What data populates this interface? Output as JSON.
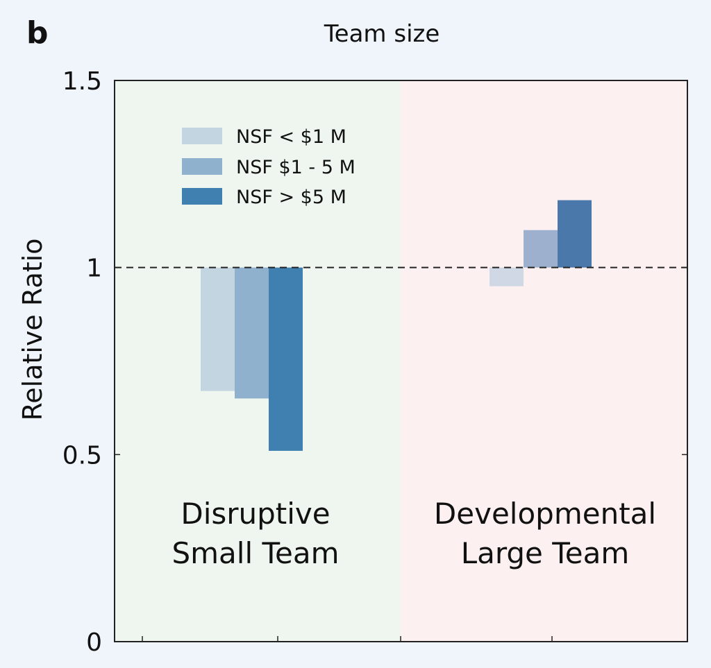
{
  "chart_data": {
    "type": "bar",
    "panel_label": "b",
    "title": "Team size",
    "xlabel": "",
    "ylabel": "Relative Ratio",
    "ylim": [
      0,
      1.5
    ],
    "yticks": [
      0,
      0.5,
      1,
      1.5
    ],
    "ytick_labels": [
      "0",
      "0.5",
      "1",
      "1.5"
    ],
    "baseline": 1,
    "grid": false,
    "legend_position": "top-left",
    "groups": [
      {
        "label_line1": "Disruptive",
        "label_line2": "Small Team",
        "background_color": "#eef6ef"
      },
      {
        "label_line1": "Developmental",
        "label_line2": "Large Team",
        "background_color": "#fcf0f1"
      }
    ],
    "series": [
      {
        "name": "NSF <  $1 M",
        "values": [
          0.67,
          0.95
        ],
        "color": "#c3d5e1"
      },
      {
        "name": "NSF $1 - 5 M",
        "values": [
          0.65,
          1.1
        ],
        "color": "#8fb1cd"
      },
      {
        "name": "NSF > $5 M",
        "values": [
          0.51,
          1.18
        ],
        "color": "#3f80b0"
      }
    ],
    "series_colors_large_team": [
      "#d0d8e6",
      "#9db1ce",
      "#4a78ab"
    ]
  }
}
